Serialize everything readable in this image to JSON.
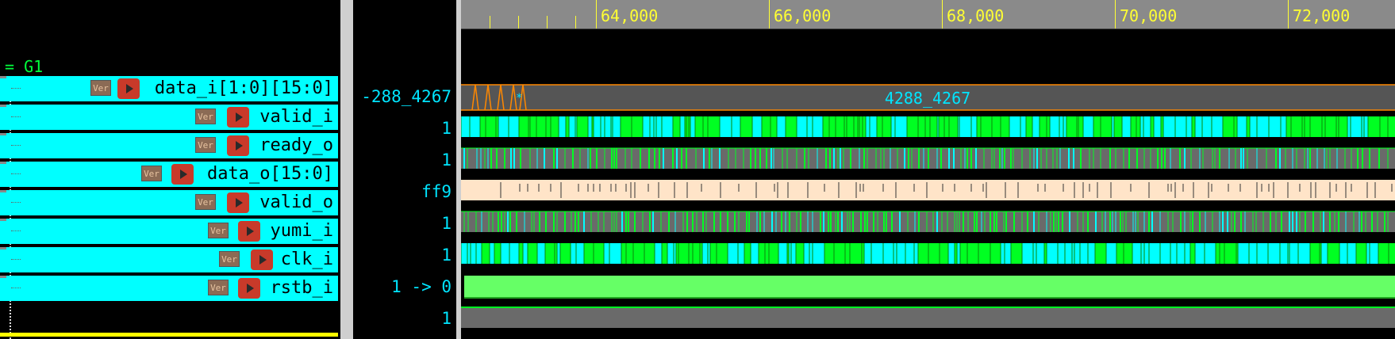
{
  "group": {
    "name": "G1",
    "marker": "="
  },
  "vlog_badge": "Ver",
  "signals": [
    {
      "name": "data_i[1:0][15:0]",
      "value": "4288_4267",
      "value_display": "-288_4267",
      "kind": "bus"
    },
    {
      "name": "valid_i",
      "value": "1",
      "kind": "bit_busy"
    },
    {
      "name": "ready_o",
      "value": "1",
      "kind": "bit_dark"
    },
    {
      "name": "data_o[15:0]",
      "value": "ff9",
      "kind": "bus_light"
    },
    {
      "name": "valid_o",
      "value": "1",
      "kind": "bit_dark"
    },
    {
      "name": "yumi_i",
      "value": "1",
      "kind": "bit_busy"
    },
    {
      "name": "clk_i",
      "value": "1 -> 0",
      "kind": "clock"
    },
    {
      "name": "rstb_i",
      "value": "1",
      "kind": "flat"
    }
  ],
  "ruler": {
    "ticks": [
      "64,000",
      "66,000",
      "68,000",
      "70,000",
      "72,000"
    ]
  },
  "bus_label": "4288_4267",
  "bus_marker": "*",
  "colors": {
    "cyan": "#00ffff",
    "green": "#00ff22",
    "light_green": "#66ff66",
    "dark_gray": "#6a6a6a",
    "peach": "#ffe4c8",
    "orange": "#ff8800",
    "yellow": "#ffff33"
  }
}
